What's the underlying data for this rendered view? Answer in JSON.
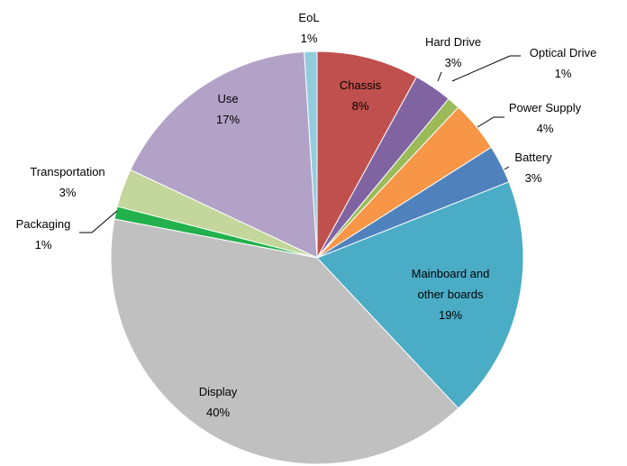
{
  "chart_data": {
    "type": "pie",
    "categories": [
      "Chassis",
      "Hard Drive",
      "Optical Drive",
      "Power Supply",
      "Battery",
      "Mainboard and other boards",
      "Display",
      "Packaging",
      "Transportation",
      "Use",
      "EoL"
    ],
    "values": [
      8,
      3,
      1,
      4,
      3,
      19,
      40,
      1,
      3,
      17,
      1
    ],
    "value_labels": [
      "8%",
      "3%",
      "1%",
      "4%",
      "3%",
      "19%",
      "40%",
      "1%",
      "3%",
      "17%",
      "1%"
    ],
    "colors": [
      "#c0504d",
      "#8064a2",
      "#9bbb59",
      "#f79646",
      "#4f81bd",
      "#4bacc6",
      "#c0c0c0",
      "#22b14c",
      "#c3d69b",
      "#b3a2c7",
      "#93cddd"
    ]
  }
}
